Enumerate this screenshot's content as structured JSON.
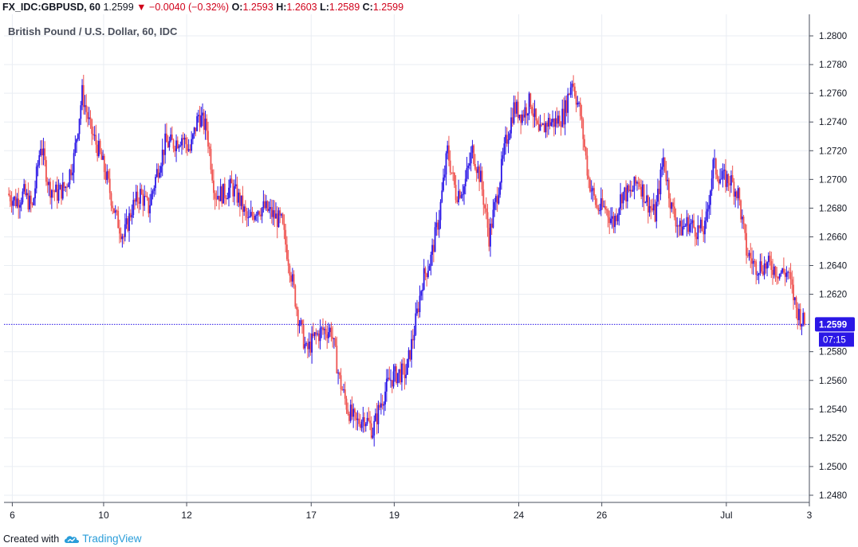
{
  "header": {
    "symbol": "FX_IDC:GBPUSD, 60",
    "last": "1.2599",
    "change": "−0.0040 (−0.32%)",
    "o_label": "O:",
    "o_value": "1.2593",
    "h_label": "H:",
    "h_value": "1.2603",
    "l_label": "L:",
    "l_value": "1.2589",
    "c_label": "C:",
    "c_value": "1.2599"
  },
  "footer": {
    "created_with": "Created with",
    "brand": "TradingView"
  },
  "colors": {
    "up": "#2b17e6",
    "down": "#ef5350",
    "grid": "#e9edf3",
    "price_line": "#2b17e6",
    "badge": "#2b17e6"
  },
  "chart_data": {
    "type": "candlestick",
    "title": "British Pound / U.S. Dollar, 60, IDC",
    "ylim": [
      1.2475,
      1.2815
    ],
    "y_ticks": [
      "1.2800",
      "1.2780",
      "1.2760",
      "1.2740",
      "1.2720",
      "1.2700",
      "1.2680",
      "1.2660",
      "1.2640",
      "1.2620",
      "1.2580",
      "1.2560",
      "1.2540",
      "1.2520",
      "1.2500",
      "1.2480"
    ],
    "x_ticks": [
      "6",
      "10",
      "12",
      "17",
      "19",
      "24",
      "26",
      "Jul",
      "3"
    ],
    "x_tick_positions": [
      0.5,
      11.5,
      21.5,
      36.5,
      46.5,
      61.5,
      71.5,
      86.5,
      96.5
    ],
    "x_count": 97,
    "last_price": {
      "value": 1.2599,
      "label": "1.2599",
      "countdown": "07:15"
    },
    "path": [
      [
        0,
        1.269
      ],
      [
        1,
        1.2685
      ],
      [
        2,
        1.269
      ],
      [
        3,
        1.268
      ],
      [
        4,
        1.2725
      ],
      [
        5,
        1.2695
      ],
      [
        6,
        1.269
      ],
      [
        7,
        1.2695
      ],
      [
        8,
        1.2715
      ],
      [
        9,
        1.276
      ],
      [
        10,
        1.2735
      ],
      [
        11,
        1.272
      ],
      [
        12,
        1.27
      ],
      [
        13,
        1.2675
      ],
      [
        14,
        1.266
      ],
      [
        15,
        1.268
      ],
      [
        16,
        1.269
      ],
      [
        17,
        1.268
      ],
      [
        18,
        1.2705
      ],
      [
        19,
        1.2725
      ],
      [
        20,
        1.2725
      ],
      [
        21,
        1.273
      ],
      [
        22,
        1.272
      ],
      [
        23,
        1.2745
      ],
      [
        24,
        1.2735
      ],
      [
        25,
        1.269
      ],
      [
        26,
        1.269
      ],
      [
        27,
        1.2695
      ],
      [
        28,
        1.2685
      ],
      [
        29,
        1.267
      ],
      [
        30,
        1.268
      ],
      [
        31,
        1.268
      ],
      [
        32,
        1.2675
      ],
      [
        33,
        1.267
      ],
      [
        34,
        1.264
      ],
      [
        35,
        1.2605
      ],
      [
        36,
        1.258
      ],
      [
        37,
        1.259
      ],
      [
        38,
        1.2595
      ],
      [
        39,
        1.2595
      ],
      [
        40,
        1.256
      ],
      [
        41,
        1.254
      ],
      [
        42,
        1.253
      ],
      [
        43,
        1.2535
      ],
      [
        44,
        1.2525
      ],
      [
        45,
        1.2545
      ],
      [
        46,
        1.256
      ],
      [
        47,
        1.2565
      ],
      [
        48,
        1.2565
      ],
      [
        49,
        1.2595
      ],
      [
        50,
        1.263
      ],
      [
        51,
        1.2645
      ],
      [
        52,
        1.2675
      ],
      [
        53,
        1.272
      ],
      [
        54,
        1.269
      ],
      [
        55,
        1.2695
      ],
      [
        56,
        1.272
      ],
      [
        57,
        1.27
      ],
      [
        58,
        1.266
      ],
      [
        59,
        1.269
      ],
      [
        60,
        1.2725
      ],
      [
        61,
        1.275
      ],
      [
        62,
        1.2745
      ],
      [
        63,
        1.2755
      ],
      [
        64,
        1.273
      ],
      [
        65,
        1.274
      ],
      [
        66,
        1.274
      ],
      [
        67,
        1.2745
      ],
      [
        68,
        1.277
      ],
      [
        69,
        1.2745
      ],
      [
        70,
        1.27
      ],
      [
        71,
        1.268
      ],
      [
        72,
        1.268
      ],
      [
        73,
        1.267
      ],
      [
        74,
        1.269
      ],
      [
        75,
        1.269
      ],
      [
        76,
        1.27
      ],
      [
        77,
        1.2685
      ],
      [
        78,
        1.2675
      ],
      [
        79,
        1.2715
      ],
      [
        80,
        1.268
      ],
      [
        81,
        1.2665
      ],
      [
        82,
        1.267
      ],
      [
        83,
        1.2665
      ],
      [
        84,
        1.2665
      ],
      [
        85,
        1.271
      ],
      [
        86,
        1.27
      ],
      [
        87,
        1.27
      ],
      [
        88,
        1.269
      ],
      [
        89,
        1.265
      ],
      [
        90,
        1.264
      ],
      [
        91,
        1.264
      ],
      [
        92,
        1.264
      ],
      [
        93,
        1.2635
      ],
      [
        94,
        1.2635
      ],
      [
        95,
        1.261
      ],
      [
        96,
        1.2599
      ]
    ]
  }
}
